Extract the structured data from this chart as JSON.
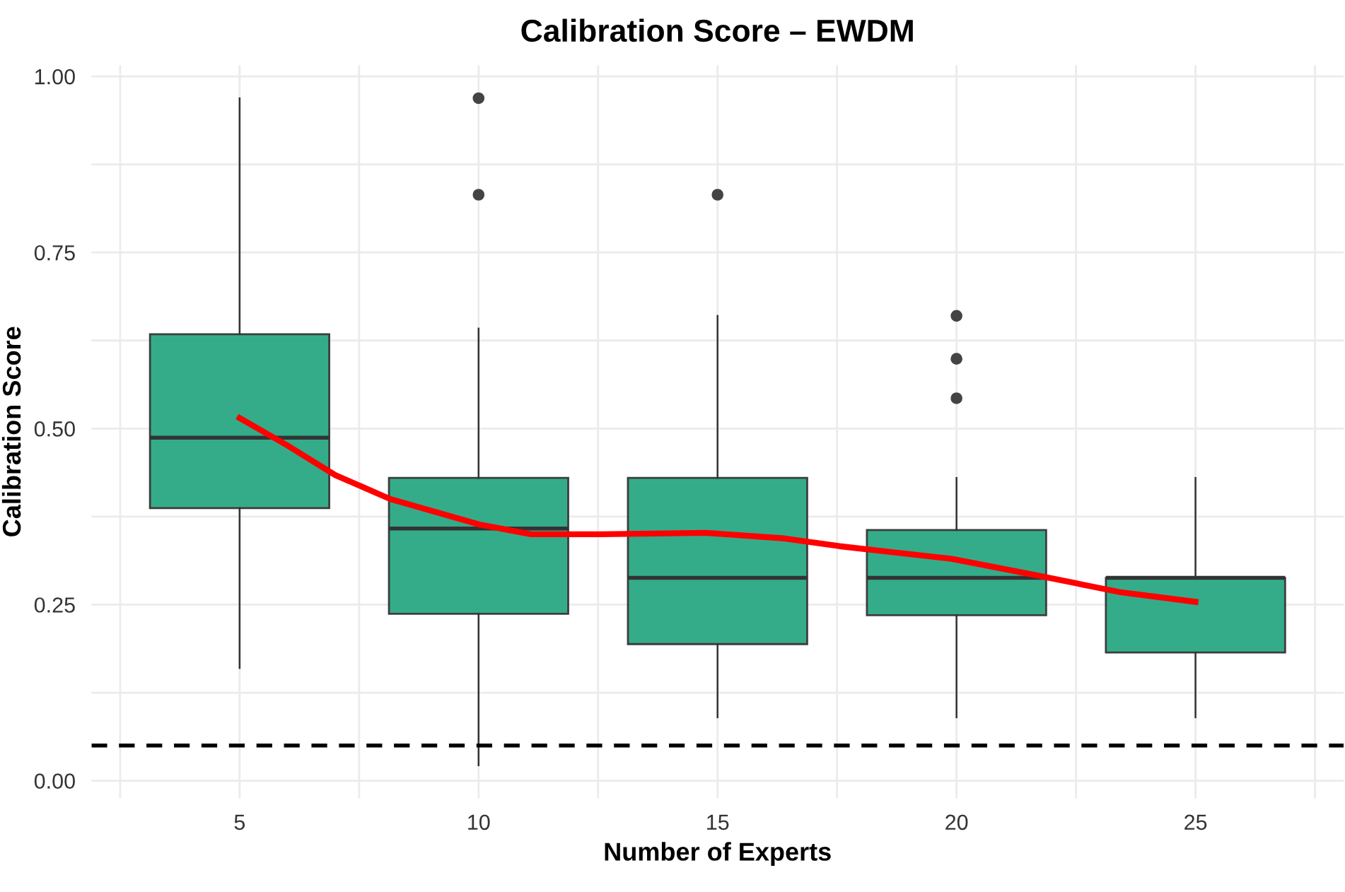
{
  "chart_data": {
    "type": "box",
    "title": "Calibration Score – EWDM",
    "xlabel": "Number of Experts",
    "ylabel": "Calibration Score",
    "x": [
      5,
      10,
      15,
      20,
      25
    ],
    "color": "#2aa884",
    "boxes": [
      {
        "low": 0.16,
        "q1": 0.387,
        "median": 0.487,
        "q3": 0.634,
        "high": 0.969
      },
      {
        "low": 0.022,
        "q1": 0.237,
        "median": 0.358,
        "q3": 0.43,
        "high": 0.642,
        "outliers": [
          0.969,
          0.832
        ]
      },
      {
        "low": 0.09,
        "q1": 0.194,
        "median": 0.288,
        "q3": 0.43,
        "high": 0.66,
        "outliers": [
          0.832
        ]
      },
      {
        "low": 0.09,
        "q1": 0.235,
        "median": 0.288,
        "q3": 0.356,
        "high": 0.43,
        "outliers": [
          0.66,
          0.599,
          0.543
        ]
      },
      {
        "low": 0.09,
        "q1": 0.182,
        "median": 0.288,
        "q3": 0.288,
        "high": 0.43
      }
    ],
    "series": [
      {
        "type": "line",
        "color": "#ff0000",
        "x": [
          5,
          6,
          7,
          8.15,
          10,
          11.1,
          12.55,
          14.75,
          16.4,
          17.55,
          19.9,
          21.65,
          23.4,
          25
        ],
        "values": [
          0.515,
          0.476,
          0.434,
          0.4,
          0.364,
          0.35,
          0.35,
          0.352,
          0.344,
          0.333,
          0.315,
          0.292,
          0.268,
          0.254
        ]
      }
    ],
    "ref_lines": [
      {
        "axis": "y",
        "value": 0.05,
        "label": null,
        "color": "#000000",
        "line_style": "dashed"
      }
    ],
    "xlim": [
      1.9,
      28.1
    ],
    "xticks": [
      {
        "value": 2.5,
        "label": null
      },
      5,
      {
        "value": 7.5,
        "label": null
      },
      10,
      {
        "value": 12.5,
        "label": null
      },
      15,
      {
        "value": 17.5,
        "label": null
      },
      20,
      {
        "value": 22.5,
        "label": null
      },
      25,
      {
        "value": 27.5,
        "label": null
      }
    ],
    "ylim": [
      -0.025,
      1.016
    ],
    "yticks": [
      {
        "value": 0,
        "label": "0.00"
      },
      {
        "value": 0.125,
        "label": null
      },
      {
        "value": 0.25,
        "label": "0.25"
      },
      {
        "value": 0.375,
        "label": null
      },
      {
        "value": 0.5,
        "label": "0.50"
      },
      {
        "value": 0.625,
        "label": null
      },
      {
        "value": 0.75,
        "label": "0.75"
      },
      {
        "value": 0.875,
        "label": null
      },
      {
        "value": 1,
        "label": "1.00"
      }
    ],
    "grid": true
  }
}
